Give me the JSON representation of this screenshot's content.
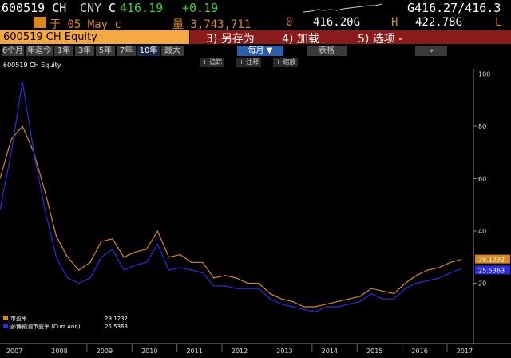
{
  "header": {
    "ticker": "600519 CH",
    "currency": "CNY",
    "flag": "C",
    "price": "416.19",
    "change": "+0.19",
    "bid_ask": "G416.27/416.3"
  },
  "quote": {
    "date": "于 05 May c",
    "volume": "量 3,743,711",
    "open_flag": "0",
    "open": "416.20G",
    "high_flag": "H",
    "high": "422.78G",
    "low_flag": "L"
  },
  "toolbar": {
    "security": "600519 CH Equity",
    "actions": [
      "3) 另存为",
      "4) 加载",
      "5) 选项 -"
    ]
  },
  "tabs": [
    "6个月",
    "年迄今",
    "1年",
    "3年",
    "5年",
    "7年",
    "10年",
    "最大"
  ],
  "frequency": "每月 ▼",
  "table": "表格",
  "more": "»",
  "tools": [
    "+ 追踪",
    "+ 注释",
    "+ 缩放"
  ],
  "chart_data": {
    "type": "line",
    "title": "600519 CH Equity",
    "categories": [
      null,
      "2007",
      null,
      null,
      null,
      "2008",
      null,
      null,
      null,
      "2009",
      null,
      null,
      null,
      "2010",
      null,
      null,
      null,
      "2011",
      null,
      null,
      null,
      "2012",
      null,
      null,
      null,
      "2013",
      null,
      null,
      null,
      "2014",
      null,
      null,
      null,
      "2015",
      null,
      null,
      null,
      "2016",
      null,
      null,
      null,
      "2017"
    ],
    "series": [
      {
        "name": "市盈率",
        "color": "#d9891c",
        "values": [
          60,
          75,
          80,
          70,
          55,
          38,
          30,
          25,
          28,
          36,
          37,
          30,
          32,
          33,
          40,
          30,
          31,
          28,
          28,
          22,
          23,
          22,
          20,
          20,
          16,
          14,
          13,
          11,
          11,
          12,
          13,
          14,
          15,
          18,
          17,
          16,
          20,
          23,
          25,
          26,
          28,
          29.1232
        ]
      },
      {
        "name": "彭博预测市盈率 (Curr Ann)",
        "color": "#2a2ee0",
        "values": [
          48,
          70,
          97,
          70,
          48,
          30,
          22,
          20,
          22,
          30,
          33,
          25,
          27,
          28,
          35,
          25,
          26,
          25,
          24,
          19,
          19,
          18,
          18,
          18,
          14,
          12,
          11,
          10,
          9,
          11,
          11,
          12,
          13,
          16,
          14,
          14,
          18,
          20,
          21,
          22,
          24,
          25.5363
        ]
      }
    ],
    "ylim": [
      0,
      102
    ],
    "yticks": [
      20,
      40,
      60,
      80,
      100
    ]
  }
}
